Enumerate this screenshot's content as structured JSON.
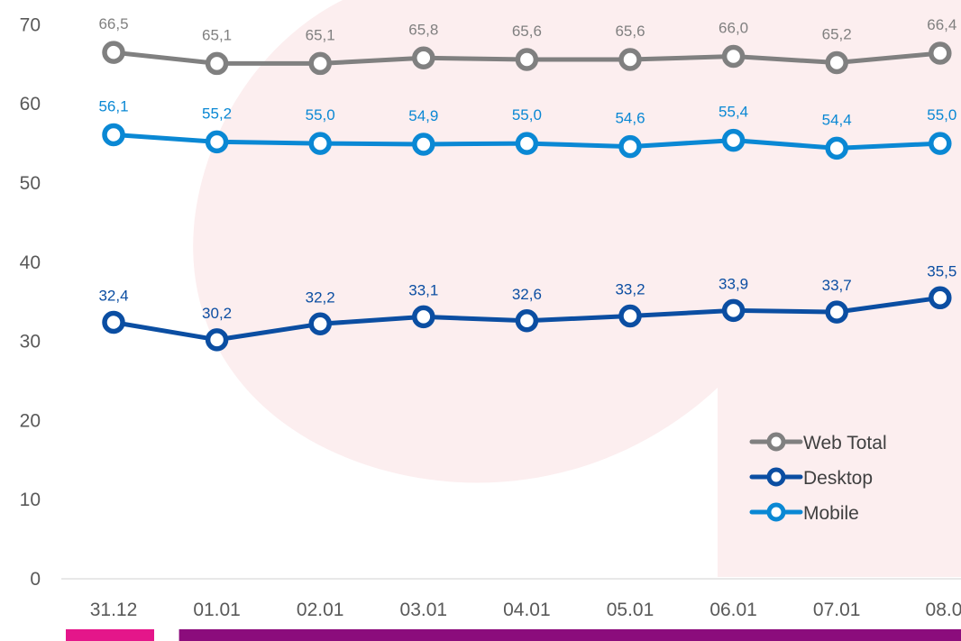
{
  "chart_data": {
    "type": "line",
    "categories": [
      "31.12",
      "01.01",
      "02.01",
      "03.01",
      "04.01",
      "05.01",
      "06.01",
      "07.01",
      "08.01"
    ],
    "series": [
      {
        "name": "Web Total",
        "color": "#808080",
        "values": [
          66.5,
          65.1,
          65.1,
          65.8,
          65.6,
          65.6,
          66.0,
          65.2,
          66.4
        ],
        "labels": [
          "66,5",
          "65,1",
          "65,1",
          "65,8",
          "65,6",
          "65,6",
          "66,0",
          "65,2",
          "66,4"
        ]
      },
      {
        "name": "Desktop",
        "color": "#0B4EA2",
        "values": [
          32.4,
          30.2,
          32.2,
          33.1,
          32.6,
          33.2,
          33.9,
          33.7,
          35.5
        ],
        "labels": [
          "32,4",
          "30,2",
          "32,2",
          "33,1",
          "32,6",
          "33,2",
          "33,9",
          "33,7",
          "35,5"
        ]
      },
      {
        "name": "Mobile",
        "color": "#0A88D4",
        "values": [
          56.1,
          55.2,
          55.0,
          54.9,
          55.0,
          54.6,
          55.4,
          54.4,
          55.0
        ],
        "labels": [
          "56,1",
          "55,2",
          "55,0",
          "54,9",
          "55,0",
          "54,6",
          "55,4",
          "54,4",
          "55,0"
        ]
      }
    ],
    "yticks": [
      "0",
      "10",
      "20",
      "30",
      "40",
      "50",
      "60",
      "70"
    ],
    "ylim": [
      0,
      70
    ],
    "grid": false,
    "legend_position": "bottom-right",
    "period_bars": [
      {
        "from": "31.12",
        "to": "31.12",
        "color": "#E4168A"
      },
      {
        "from": "01.01",
        "to": "08.01",
        "color": "#8B0C7C"
      }
    ],
    "background_watermark_color": "#FCEEEF"
  }
}
